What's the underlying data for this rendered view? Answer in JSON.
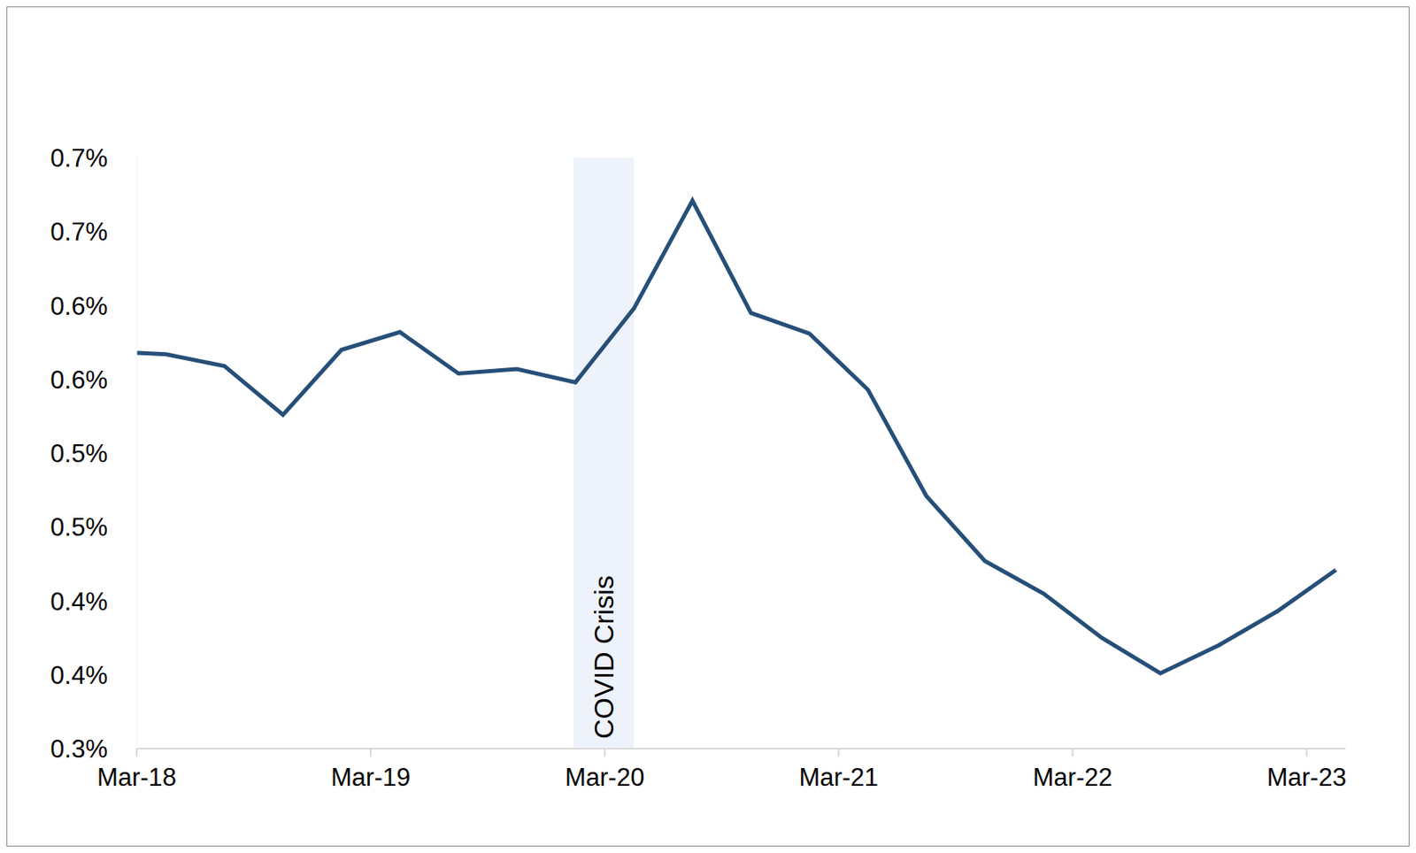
{
  "chart_data": {
    "type": "line",
    "x": [
      0,
      1.5,
      4.5,
      7.5,
      10.5,
      13.5,
      16.5,
      19.5,
      22.5,
      25.5,
      28.5,
      31.5,
      34.5,
      37.5,
      40.5,
      43.5,
      46.5,
      49.5,
      52.5,
      55.5,
      58.5,
      61.5
    ],
    "values": [
      0.568,
      0.567,
      0.559,
      0.526,
      0.57,
      0.582,
      0.554,
      0.557,
      0.548,
      0.598,
      0.671,
      0.595,
      0.581,
      0.543,
      0.471,
      0.427,
      0.405,
      0.375,
      0.351,
      0.37,
      0.393,
      0.421
    ],
    "color": "#264f78",
    "xlim": [
      0,
      62
    ],
    "xticks": [
      {
        "value": 0,
        "label": "Mar-18"
      },
      {
        "value": 12,
        "label": "Mar-19"
      },
      {
        "value": 24,
        "label": "Mar-20"
      },
      {
        "value": 36,
        "label": "Mar-21"
      },
      {
        "value": 48,
        "label": "Mar-22"
      },
      {
        "value": 60,
        "label": "Mar-23"
      }
    ],
    "ylim": [
      0.3,
      0.7
    ],
    "yticks": [
      {
        "value": 0.3,
        "label": "0.3%"
      },
      {
        "value": 0.35,
        "label": "0.4%"
      },
      {
        "value": 0.4,
        "label": "0.4%"
      },
      {
        "value": 0.45,
        "label": "0.5%"
      },
      {
        "value": 0.5,
        "label": "0.5%"
      },
      {
        "value": 0.55,
        "label": "0.6%"
      },
      {
        "value": 0.6,
        "label": "0.6%"
      },
      {
        "value": 0.65,
        "label": "0.7%"
      },
      {
        "value": 0.7,
        "label": "0.7%"
      }
    ],
    "grid": false,
    "annotations": [
      {
        "text": "COVID Crisis",
        "x": [
          22.4,
          25.5
        ]
      }
    ]
  }
}
